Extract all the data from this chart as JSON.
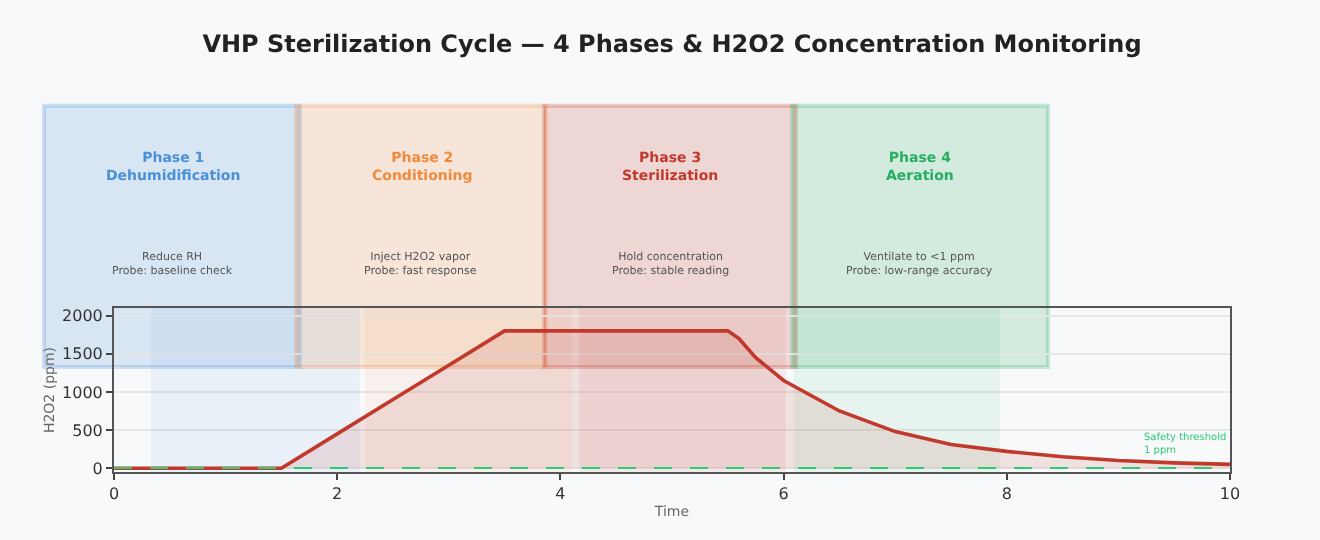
{
  "chart_data": {
    "type": "area",
    "title": "VHP Sterilization Cycle — 4 Phases & H2O2 Concentration Monitoring",
    "xlabel": "Time",
    "ylabel": "H2O2 (ppm)",
    "series": [
      {
        "color": "#c0392b",
        "x": [
          0,
          0.5,
          1,
          1.5,
          2,
          2.5,
          3,
          3.5,
          4,
          4.5,
          5,
          5.5,
          5.6,
          5.75,
          6,
          6.25,
          6.5,
          7,
          7.5,
          8,
          8.5,
          9,
          9.5,
          10
        ],
        "values": [
          0,
          0,
          0,
          0,
          450,
          900,
          1350,
          1800,
          1800,
          1800,
          1800,
          1800,
          1700,
          1450,
          1150,
          950,
          750,
          480,
          310,
          220,
          150,
          100,
          70,
          50
        ]
      }
    ],
    "xlim": [
      0,
      10
    ],
    "ylim": [
      -50,
      2100
    ],
    "xticks": [
      0,
      2,
      4,
      6,
      8,
      10
    ],
    "yticks": [
      0,
      500,
      1000,
      1500,
      2000
    ],
    "grid": "y",
    "bands": [
      {
        "axis": "x",
        "from": 0.33,
        "to": 2.2,
        "label": null,
        "color": "#4a90d9"
      },
      {
        "axis": "x",
        "from": 2.25,
        "to": 4.1,
        "label": null,
        "color": "#f08a3c"
      },
      {
        "axis": "x",
        "from": 4.17,
        "to": 6.02,
        "label": null,
        "color": "#c0392b"
      },
      {
        "axis": "x",
        "from": 6.09,
        "to": 7.94,
        "label": null,
        "color": "#27ae60"
      }
    ],
    "ref_lines": [
      {
        "axis": "y",
        "value": 1,
        "label": "Safety threshold\n1 ppm",
        "color": "#2ecc71",
        "line_style": "dashed"
      }
    ],
    "annotations": [
      "Phase 1\nDehumidification",
      "Reduce RH\nProbe: baseline check",
      "Phase 2\nConditioning",
      "Inject H2O2 vapor\nProbe: fast response",
      "Phase 3\nSterilization",
      "Hold concentration\nProbe: stable reading",
      "Phase 4\nAeration",
      "Ventilate to <1 ppm\nProbe: low-range accuracy"
    ]
  }
}
